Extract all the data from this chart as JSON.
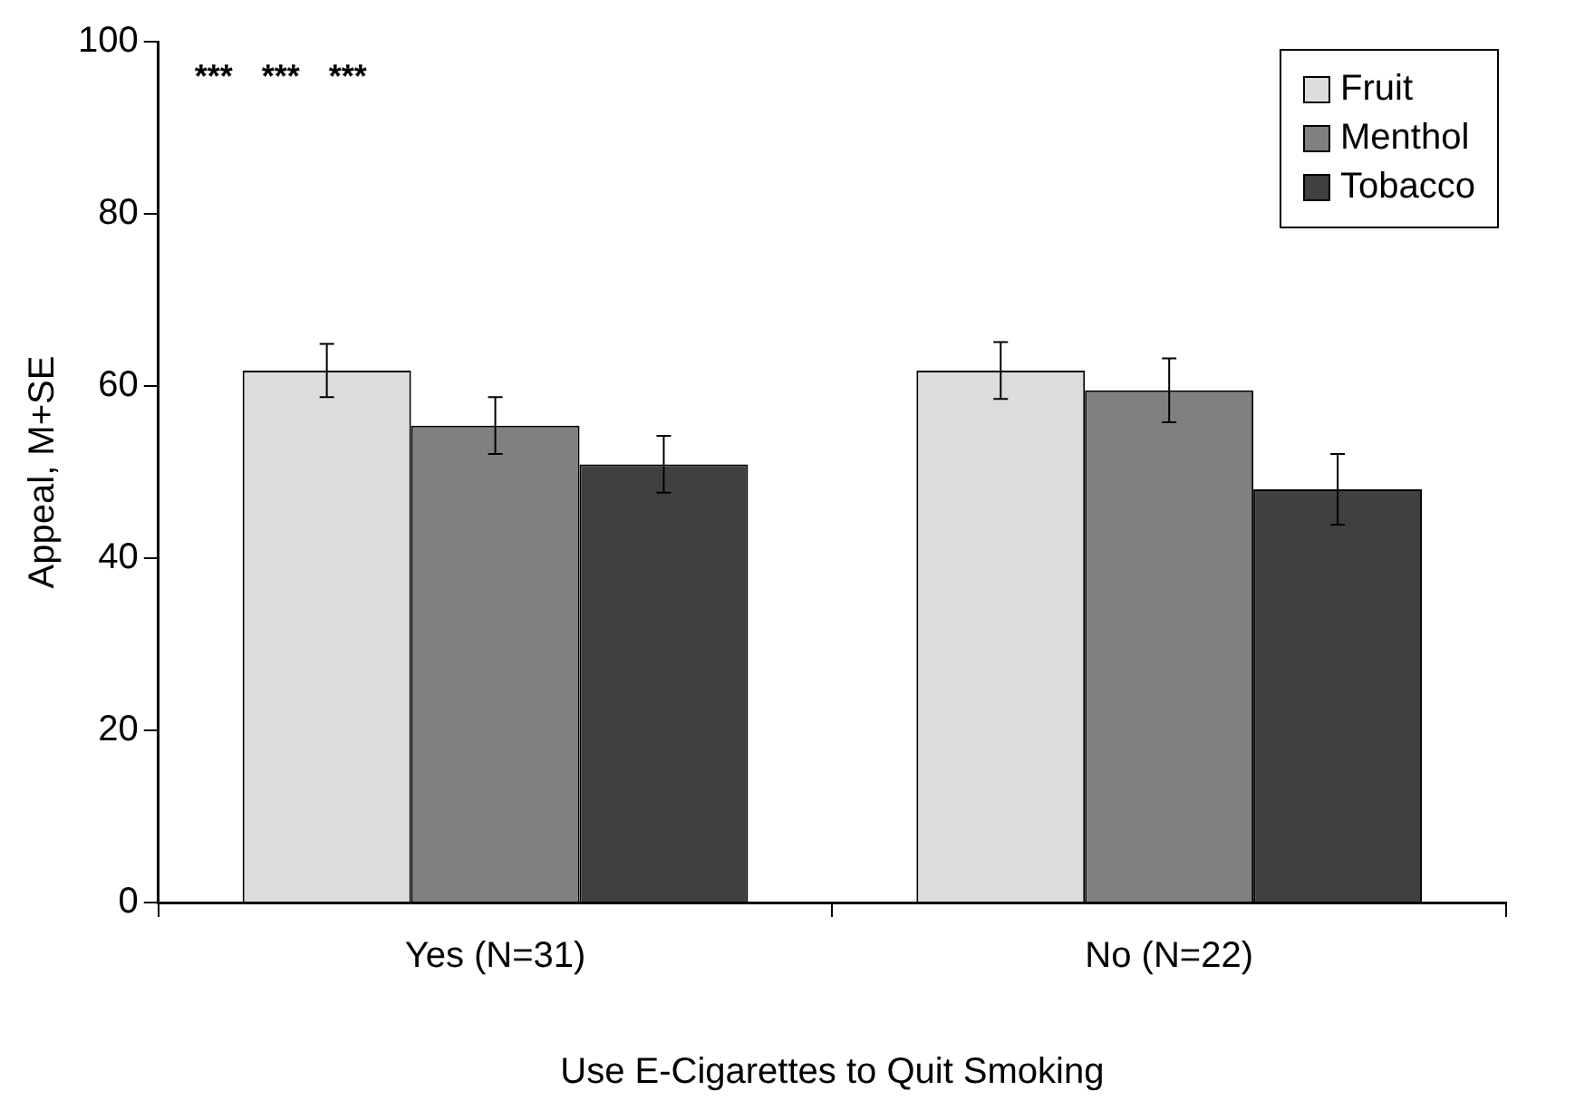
{
  "chart_data": {
    "type": "bar",
    "xlabel": "Use E-Cigarettes to Quit Smoking",
    "ylabel": "Appeal, M+SE",
    "categories": [
      "Yes (N=31)",
      "No (N=22)"
    ],
    "series": [
      {
        "name": "Fruit",
        "color": "#dcdcdc",
        "values": [
          61.8,
          61.8
        ],
        "errors": [
          3.1,
          3.3
        ]
      },
      {
        "name": "Menthol",
        "color": "#808080",
        "values": [
          55.4,
          59.5
        ],
        "errors": [
          3.3,
          3.7
        ]
      },
      {
        "name": "Tobacco",
        "color": "#404040",
        "values": [
          50.9,
          48.0
        ],
        "errors": [
          3.3,
          4.1
        ]
      }
    ],
    "ylim": [
      0,
      100
    ],
    "yticks": [
      0,
      20,
      40,
      60,
      80,
      100
    ],
    "grid": false,
    "legend": "top right",
    "annotations": [
      "***",
      "***",
      "***"
    ]
  }
}
